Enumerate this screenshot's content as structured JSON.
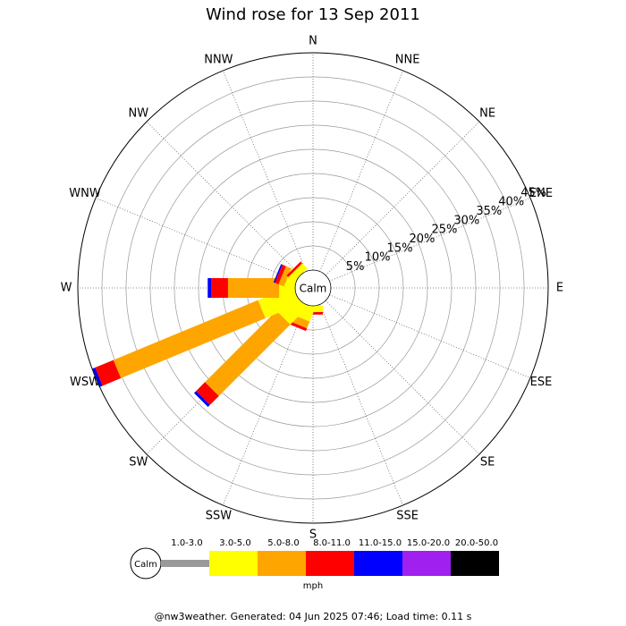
{
  "chart_data": {
    "type": "wind_rose",
    "title": "Wind rose for 13 Sep 2011",
    "directions": [
      "N",
      "NNE",
      "NE",
      "ENE",
      "E",
      "ESE",
      "SE",
      "SSE",
      "S",
      "SSW",
      "SW",
      "WSW",
      "W",
      "WNW",
      "NW",
      "NNW"
    ],
    "rlim": [
      0,
      45
    ],
    "rticks": [
      {
        "value": 5,
        "label": "5%"
      },
      {
        "value": 10,
        "label": "10%"
      },
      {
        "value": 15,
        "label": "15%"
      },
      {
        "value": 20,
        "label": "20%"
      },
      {
        "value": 25,
        "label": "25%"
      },
      {
        "value": 30,
        "label": "30%"
      },
      {
        "value": 35,
        "label": "35%"
      },
      {
        "value": 40,
        "label": "40%"
      },
      {
        "value": 45,
        "label": "45%"
      }
    ],
    "calm_label": "Calm",
    "unit": "mph",
    "series": [
      {
        "name": "1.0-3.0",
        "color": "#999999",
        "values": [
          0,
          0,
          0,
          0,
          0,
          0,
          0,
          0,
          0,
          0,
          0,
          0,
          0,
          0,
          0,
          0
        ]
      },
      {
        "name": "3.0-5.0",
        "color": "#ffff00",
        "values": [
          0,
          0,
          0,
          0,
          0,
          0,
          0,
          0,
          1.3,
          3,
          5,
          7.8,
          3.3,
          2,
          1.5,
          0
        ]
      },
      {
        "name": "5.0-8.0",
        "color": "#ffa500",
        "values": [
          0,
          0,
          0,
          0,
          0,
          0,
          0,
          0,
          0,
          1.5,
          20.9,
          32.4,
          10.6,
          1.2,
          0,
          0
        ]
      },
      {
        "name": "8.0-11.0",
        "color": "#ff0000",
        "values": [
          0,
          0,
          0,
          0,
          0,
          0,
          0,
          0,
          0.5,
          0.6,
          2.6,
          4.1,
          3.5,
          0.8,
          0.5,
          0
        ]
      },
      {
        "name": "11.0-15.0",
        "color": "#0000ff",
        "values": [
          0,
          0,
          0,
          0,
          0,
          0,
          0,
          0,
          0,
          0,
          0.6,
          0.6,
          0.7,
          0.3,
          0,
          0
        ]
      },
      {
        "name": "15.0-20.0",
        "color": "#a020f0",
        "values": [
          0,
          0,
          0,
          0,
          0,
          0,
          0,
          0,
          0,
          0,
          0,
          0,
          0,
          0,
          0,
          0
        ]
      },
      {
        "name": "20.0-50.0",
        "color": "#000000",
        "values": [
          0,
          0,
          0,
          0,
          0,
          0,
          0,
          0,
          0,
          0,
          0,
          0,
          0,
          0,
          0,
          0
        ]
      }
    ],
    "footer": "@nw3weather. Generated: 04 Jun 2025 07:46; Load time: 0.11 s"
  }
}
